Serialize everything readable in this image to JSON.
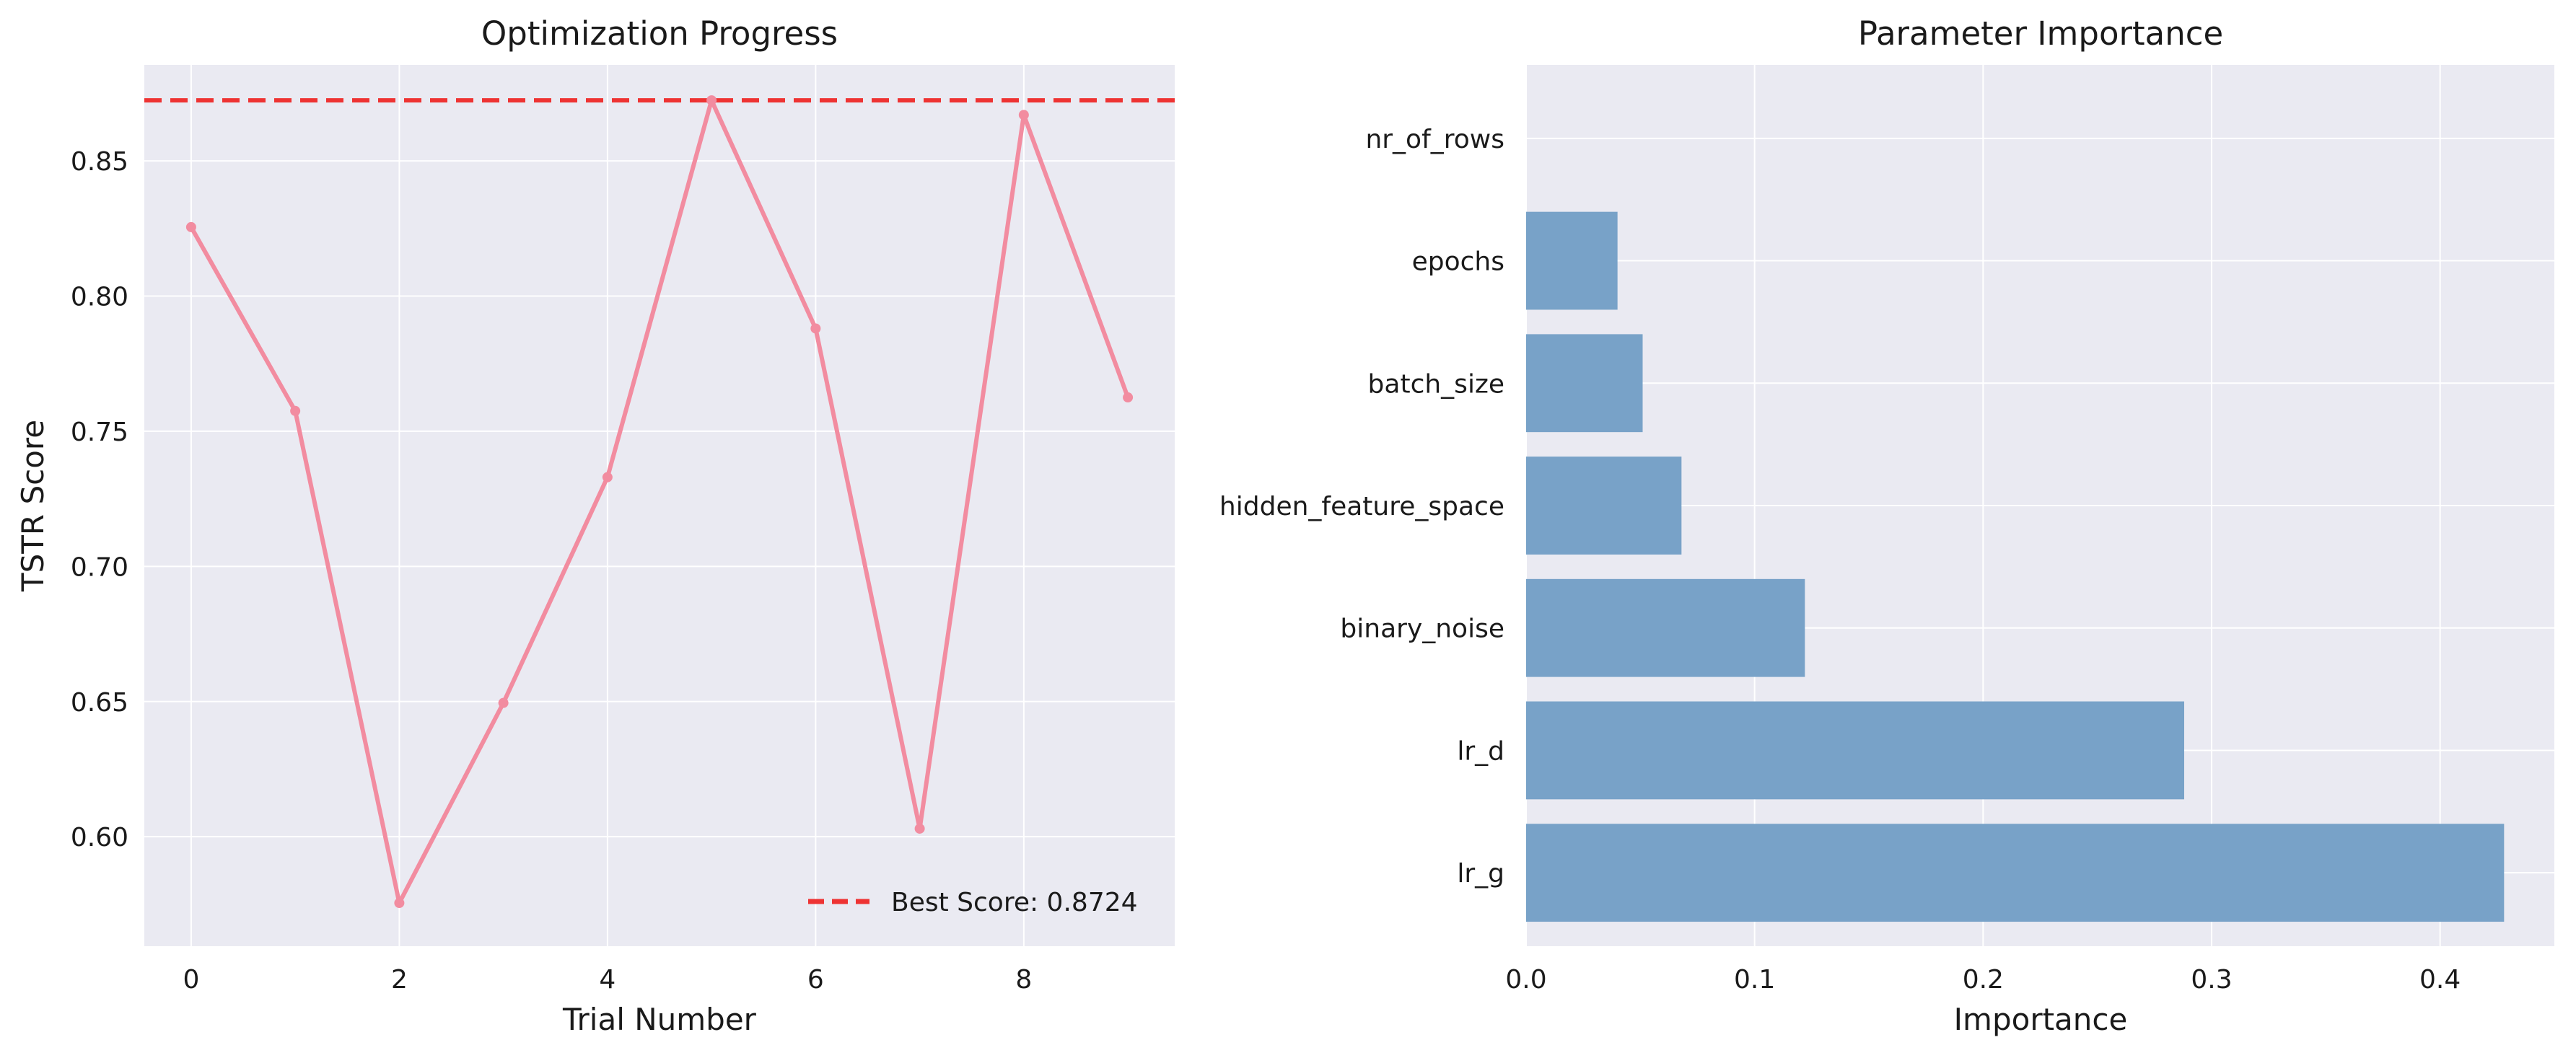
{
  "chart_data": [
    {
      "type": "line",
      "title": "Optimization Progress",
      "xlabel": "Trial Number",
      "ylabel": "TSTR Score",
      "x": [
        0,
        1,
        2,
        3,
        4,
        5,
        6,
        7,
        8,
        9
      ],
      "series": [
        {
          "values": [
            0.8255,
            0.7575,
            0.5755,
            0.6495,
            0.733,
            0.8724,
            0.788,
            0.603,
            0.867,
            0.7625
          ],
          "color": "#f28ca0"
        }
      ],
      "reference_line": {
        "y": 0.8724,
        "label": "Best Score: 0.8724",
        "color": "#ee3333",
        "style": "dashed"
      },
      "xlim": [
        -0.45,
        9.45
      ],
      "ylim": [
        0.5595,
        0.8855
      ],
      "xticks": [
        "0",
        "2",
        "4",
        "6",
        "8"
      ],
      "yticks": [
        "0.60",
        "0.65",
        "0.70",
        "0.75",
        "0.80",
        "0.85"
      ],
      "grid": true,
      "legend_position": "lower-right",
      "background": "#eaeaf2"
    },
    {
      "type": "bar",
      "orientation": "horizontal",
      "title": "Parameter Importance",
      "xlabel": "Importance",
      "ylabel": "",
      "categories": [
        "lr_g",
        "lr_d",
        "binary_noise",
        "hidden_feature_space",
        "batch_size",
        "epochs",
        "nr_of_rows"
      ],
      "values": [
        0.428,
        0.288,
        0.122,
        0.068,
        0.051,
        0.04,
        0.0
      ],
      "xlim": [
        0.0,
        0.45
      ],
      "xticks": [
        "0.0",
        "0.1",
        "0.2",
        "0.3",
        "0.4"
      ],
      "bar_color": "#78a2c8",
      "grid": true,
      "background": "#eaeaf2"
    }
  ]
}
